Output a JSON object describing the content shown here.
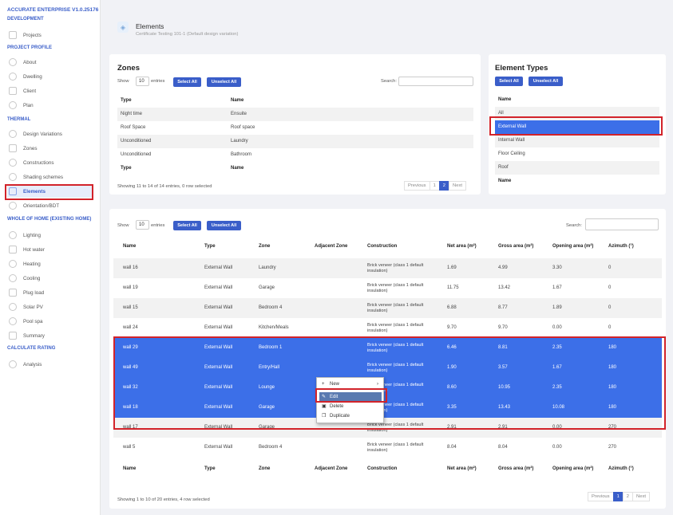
{
  "app": {
    "title": "ACCURATE ENTERPRISE V1.0.25176"
  },
  "sidebar": {
    "sections": [
      "DEVELOPMENT",
      "PROJECT PROFILE",
      "THERMAL",
      "WHOLE OF HOME (EXISTING HOME)",
      "CALCULATE RATING"
    ],
    "items": [
      {
        "label": "Projects",
        "icon": "folder-icon"
      },
      {
        "label": "About",
        "icon": "info-icon"
      },
      {
        "label": "Dwelling",
        "icon": "location-icon"
      },
      {
        "label": "Client",
        "icon": "info-icon"
      },
      {
        "label": "Plan",
        "icon": "plan-icon"
      },
      {
        "label": "Design Variations",
        "icon": "gear-icon"
      },
      {
        "label": "Zones",
        "icon": "zones-icon"
      },
      {
        "label": "Constructions",
        "icon": "constructions-icon"
      },
      {
        "label": "Shading schemes",
        "icon": "shading-icon"
      },
      {
        "label": "Elements",
        "icon": "elements-icon"
      },
      {
        "label": "Orientation/BDT",
        "icon": "compass-icon"
      },
      {
        "label": "Lighting",
        "icon": "bulb-icon"
      },
      {
        "label": "Hot water",
        "icon": "water-icon"
      },
      {
        "label": "Heating",
        "icon": "heating-icon"
      },
      {
        "label": "Cooling",
        "icon": "cooling-icon"
      },
      {
        "label": "Plug load",
        "icon": "plug-icon"
      },
      {
        "label": "Solar PV",
        "icon": "sun-icon"
      },
      {
        "label": "Pool spa",
        "icon": "pool-icon"
      },
      {
        "label": "Summary",
        "icon": "summary-icon"
      },
      {
        "label": "Analysis",
        "icon": "chart-icon"
      }
    ]
  },
  "header": {
    "title": "Elements",
    "subtitle": "Certificate Testing 101-1 (Default design variation)"
  },
  "zones": {
    "title": "Zones",
    "show": "Show",
    "page_size": "10",
    "entries": "entries",
    "select_all": "Select All",
    "unselect_all": "Unselect All",
    "search": "Search:",
    "columns": [
      "Type",
      "Name"
    ],
    "rows": [
      [
        "Night time",
        "Ensuite"
      ],
      [
        "Roof Space",
        "Roof space"
      ],
      [
        "Unconditioned",
        "Laundry"
      ],
      [
        "Unconditioned",
        "Bathroom"
      ]
    ],
    "info": "Showing 11 to 14 of 14 entries, 0 row selected",
    "pagination": [
      "Previous",
      "1",
      "2",
      "Next"
    ]
  },
  "element_types": {
    "title": "Element Types",
    "select_all": "Select All",
    "unselect_all": "Unselect All",
    "column": "Name",
    "items": [
      "All",
      "External Wall",
      "Internal Wall",
      "Floor Ceiling",
      "Roof"
    ],
    "selected": "External Wall"
  },
  "elements": {
    "show": "Show",
    "page_size": "10",
    "entries": "entries",
    "select_all": "Select All",
    "unselect_all": "Unselect All",
    "search": "Search:",
    "columns": [
      "Name",
      "Type",
      "Zone",
      "Adjacent Zone",
      "Construction",
      "Net area (m²)",
      "Gross area (m²)",
      "Opening area (m²)",
      "Azimuth (°)"
    ],
    "rows": [
      [
        "wall 16",
        "External Wall",
        "Laundry",
        "",
        "Brick veneer (class 1 default insulation)",
        "1.69",
        "4.99",
        "3.30",
        "0"
      ],
      [
        "wall 19",
        "External Wall",
        "Garage",
        "",
        "Brick veneer (class 1 default insulation)",
        "11.75",
        "13.42",
        "1.67",
        "0"
      ],
      [
        "wall 15",
        "External Wall",
        "Bedroom 4",
        "",
        "Brick veneer (class 1 default insulation)",
        "6.88",
        "8.77",
        "1.89",
        "0"
      ],
      [
        "wall 24",
        "External Wall",
        "Kitchen/Meals",
        "",
        "Brick veneer (class 1 default insulation)",
        "9.70",
        "9.70",
        "0.00",
        "0"
      ],
      [
        "wall 29",
        "External Wall",
        "Bedroom 1",
        "",
        "Brick veneer (class 1 default insulation)",
        "6.46",
        "8.81",
        "2.35",
        "180"
      ],
      [
        "wall 49",
        "External Wall",
        "Entry/Hall",
        "",
        "Brick veneer (class 1 default insulation)",
        "1.90",
        "3.57",
        "1.67",
        "180"
      ],
      [
        "wall 32",
        "External Wall",
        "Lounge",
        "",
        "Brick veneer (class 1 default insulation)",
        "8.60",
        "10.95",
        "2.35",
        "180"
      ],
      [
        "wall 18",
        "External Wall",
        "Garage",
        "",
        "Brick veneer (class 1 default insulation)",
        "3.35",
        "13.43",
        "10.08",
        "180"
      ],
      [
        "wall 17",
        "External Wall",
        "Garage",
        "",
        "Brick veneer (class 1 default insulation)",
        "2.91",
        "2.91",
        "0.00",
        "270"
      ],
      [
        "wall 5",
        "External Wall",
        "Bedroom 4",
        "",
        "Brick veneer (class 1 default insulation)",
        "8.04",
        "8.04",
        "0.00",
        "270"
      ]
    ],
    "info": "Showing 1 to 10 of 20 entries, 4 row selected",
    "pagination": [
      "Previous",
      "1",
      "2",
      "Next"
    ]
  },
  "context_menu": {
    "items": [
      {
        "label": "New",
        "icon": "plus-icon"
      },
      {
        "label": "Edit",
        "icon": "edit-icon"
      },
      {
        "label": "Delete",
        "icon": "trash-icon"
      },
      {
        "label": "Duplicate",
        "icon": "copy-icon"
      }
    ]
  },
  "colors": {
    "accent": "#3a5ec9",
    "selected_row": "#3c6fe8",
    "highlight_box": "#d2232a"
  }
}
